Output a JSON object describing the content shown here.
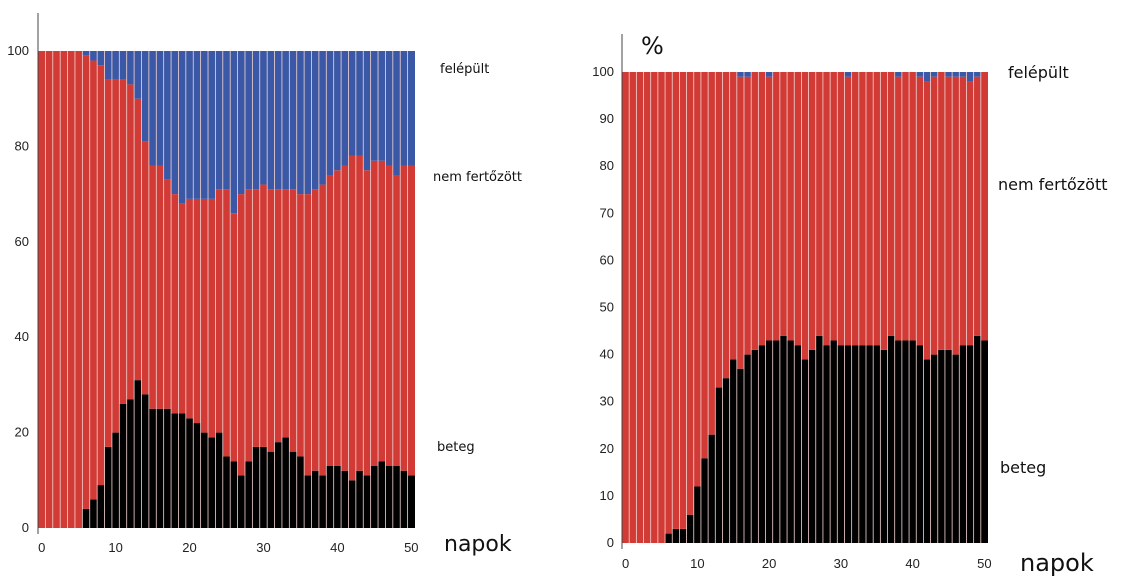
{
  "colors": {
    "beteg": "#000000",
    "nem_fertozott": "#d13a35",
    "felepult": "#3a58a6",
    "separator": "#f2d6d3"
  },
  "chart_data": [
    {
      "type": "bar",
      "stacked": true,
      "percent_label": "",
      "xlabel": "napok",
      "ylabel": "",
      "xlim": [
        0,
        50
      ],
      "ylim": [
        0,
        100
      ],
      "xticks": [
        "0",
        "10",
        "20",
        "30",
        "40",
        "50"
      ],
      "yticks": [
        "0",
        "20",
        "40",
        "60",
        "80",
        "100"
      ],
      "legend_placement": "right",
      "grid": false,
      "x": [
        0,
        1,
        2,
        3,
        4,
        5,
        6,
        7,
        8,
        9,
        10,
        11,
        12,
        13,
        14,
        15,
        16,
        17,
        18,
        19,
        20,
        21,
        22,
        23,
        24,
        25,
        26,
        27,
        28,
        29,
        30,
        31,
        32,
        33,
        34,
        35,
        36,
        37,
        38,
        39,
        40,
        41,
        42,
        43,
        44,
        45,
        46,
        47,
        48,
        49,
        50
      ],
      "series": [
        {
          "name": "beteg",
          "color": "#000000",
          "values": [
            0,
            0,
            0,
            0,
            0,
            0,
            4,
            6,
            9,
            17,
            20,
            26,
            27,
            31,
            28,
            25,
            25,
            25,
            24,
            24,
            23,
            22,
            20,
            19,
            20,
            15,
            14,
            11,
            14,
            17,
            17,
            16,
            18,
            19,
            16,
            15,
            11,
            12,
            11,
            13,
            13,
            12,
            10,
            12,
            11,
            13,
            14,
            13,
            13,
            12,
            11
          ]
        },
        {
          "name": "nem fertőzött",
          "color": "#d13a35",
          "values": [
            100,
            100,
            100,
            100,
            100,
            100,
            95,
            92,
            88,
            77,
            74,
            68,
            66,
            59,
            53,
            51,
            51,
            48,
            46,
            44,
            46,
            47,
            49,
            50,
            51,
            56,
            52,
            59,
            57,
            54,
            55,
            55,
            53,
            52,
            55,
            55,
            59,
            59,
            61,
            61,
            62,
            64,
            68,
            66,
            64,
            64,
            63,
            63,
            61,
            64,
            65
          ]
        },
        {
          "name": "felépült",
          "color": "#3a58a6",
          "values": [
            0,
            0,
            0,
            0,
            0,
            0,
            1,
            2,
            3,
            6,
            6,
            6,
            7,
            10,
            19,
            24,
            24,
            27,
            30,
            32,
            31,
            31,
            31,
            31,
            29,
            29,
            34,
            30,
            29,
            29,
            28,
            29,
            29,
            29,
            29,
            30,
            30,
            29,
            28,
            26,
            25,
            24,
            22,
            22,
            25,
            23,
            23,
            24,
            26,
            24,
            24
          ]
        }
      ]
    },
    {
      "type": "bar",
      "stacked": true,
      "percent_label": "%",
      "xlabel": "napok",
      "ylabel": "",
      "xlim": [
        0,
        50
      ],
      "ylim": [
        0,
        100
      ],
      "xticks": [
        "0",
        "10",
        "20",
        "30",
        "40",
        "50"
      ],
      "yticks": [
        "0",
        "10",
        "20",
        "30",
        "40",
        "50",
        "60",
        "70",
        "80",
        "90",
        "100"
      ],
      "legend_placement": "right",
      "grid": false,
      "x": [
        0,
        1,
        2,
        3,
        4,
        5,
        6,
        7,
        8,
        9,
        10,
        11,
        12,
        13,
        14,
        15,
        16,
        17,
        18,
        19,
        20,
        21,
        22,
        23,
        24,
        25,
        26,
        27,
        28,
        29,
        30,
        31,
        32,
        33,
        34,
        35,
        36,
        37,
        38,
        39,
        40,
        41,
        42,
        43,
        44,
        45,
        46,
        47,
        48,
        49,
        50
      ],
      "series": [
        {
          "name": "beteg",
          "color": "#000000",
          "values": [
            0,
            0,
            0,
            0,
            0,
            0,
            2,
            3,
            3,
            6,
            12,
            18,
            23,
            33,
            35,
            39,
            37,
            40,
            41,
            42,
            43,
            43,
            44,
            43,
            42,
            39,
            41,
            44,
            42,
            43,
            42,
            42,
            42,
            42,
            42,
            42,
            41,
            44,
            43,
            43,
            43,
            42,
            39,
            40,
            41,
            41,
            40,
            42,
            42,
            44,
            43
          ]
        },
        {
          "name": "nem fertőzött",
          "color": "#d13a35",
          "values": [
            100,
            100,
            100,
            100,
            100,
            100,
            98,
            97,
            97,
            94,
            88,
            82,
            77,
            67,
            65,
            61,
            62,
            59,
            59,
            58,
            56,
            57,
            56,
            57,
            58,
            61,
            59,
            56,
            58,
            57,
            58,
            57,
            58,
            58,
            58,
            58,
            59,
            56,
            56,
            57,
            57,
            57,
            59,
            59,
            59,
            58,
            59,
            57,
            56,
            55,
            57
          ]
        },
        {
          "name": "felépült",
          "color": "#3a58a6",
          "values": [
            0,
            0,
            0,
            0,
            0,
            0,
            0,
            0,
            0,
            0,
            0,
            0,
            0,
            0,
            0,
            0,
            1,
            1,
            0,
            0,
            1,
            0,
            0,
            0,
            0,
            0,
            0,
            0,
            0,
            0,
            0,
            1,
            0,
            0,
            0,
            0,
            0,
            0,
            1,
            0,
            0,
            1,
            2,
            1,
            0,
            1,
            1,
            1,
            2,
            1,
            0
          ]
        }
      ]
    }
  ]
}
